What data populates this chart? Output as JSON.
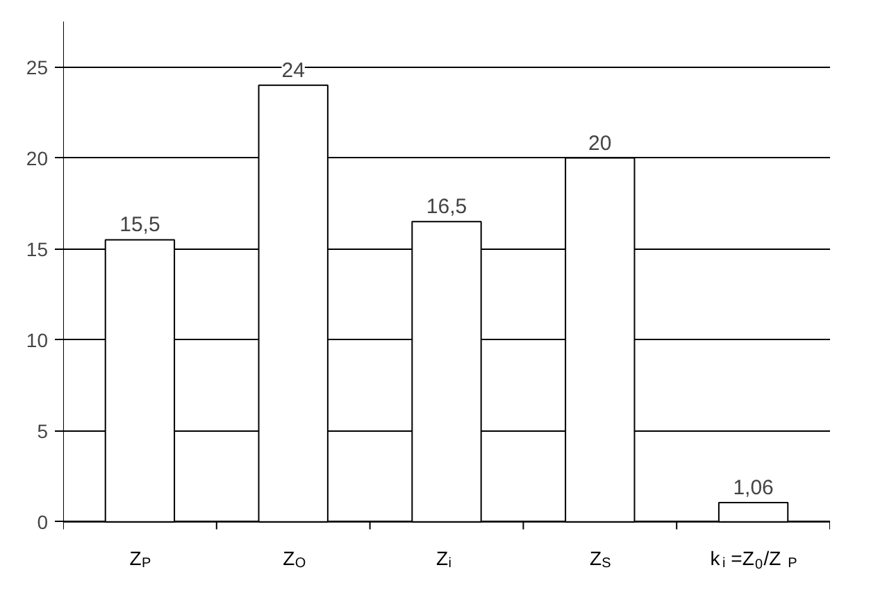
{
  "chart_data": {
    "type": "bar",
    "categories": [
      "Z$_{P}$",
      "Z$_{O}$",
      "Z$_{i}$",
      "Z$_{S}$",
      "k$_{i}$=Z$_{0}$/Z$_{P}$"
    ],
    "values": [
      15.5,
      24,
      16.5,
      20,
      1.06
    ],
    "color": "#ffffff",
    "value_labels": [
      "15,5",
      "24",
      "16,5",
      "20",
      "1,06"
    ],
    "ylim": [
      0,
      27.5
    ],
    "yticks": [
      0,
      5,
      10,
      15,
      20,
      25
    ],
    "grid": "y"
  }
}
